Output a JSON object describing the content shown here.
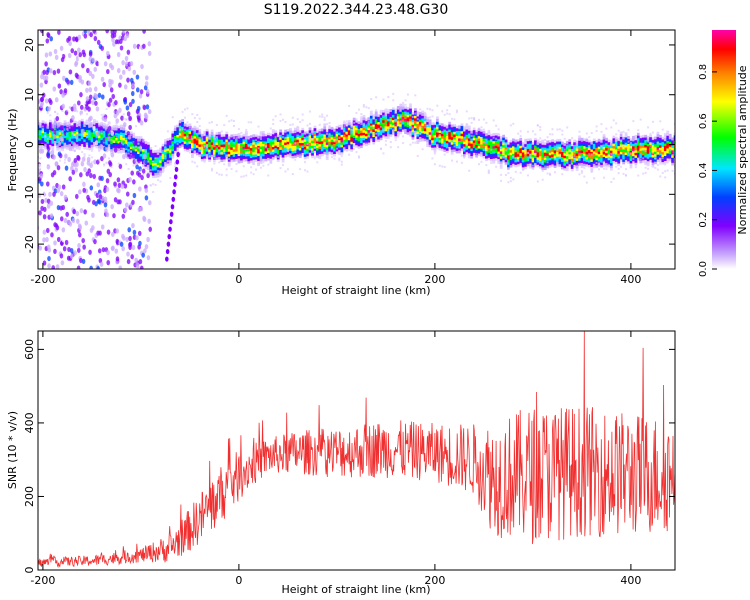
{
  "title": "S119.2022.344.23.48.G30",
  "chart_data": [
    {
      "type": "heatmap",
      "xlabel": "Height of straight line (km)",
      "ylabel": "Frequency (Hz)",
      "xlim": [
        -205,
        445
      ],
      "ylim": [
        -25,
        23
      ],
      "xticks": [
        -200,
        0,
        200,
        400
      ],
      "yticks": [
        -20,
        -10,
        0,
        10,
        20
      ],
      "grid": false,
      "colorbar": {
        "label": "Normalized spectral amplitude",
        "range": [
          0,
          0.97
        ],
        "ticks": [
          "0.0",
          "0.2",
          "0.4",
          "0.6",
          "0.8"
        ],
        "colors": [
          "#ffffff",
          "#c9a8ff",
          "#8000ff",
          "#0040ff",
          "#00e5ff",
          "#00ff00",
          "#ffff00",
          "#ff8000",
          "#ff0000",
          "#ff00aa"
        ]
      },
      "ridge": {
        "x": [
          -205,
          -180,
          -150,
          -120,
          -100,
          -85,
          -70,
          -60,
          -40,
          0,
          50,
          100,
          150,
          170,
          200,
          250,
          280,
          300,
          350,
          400,
          445
        ],
        "y": [
          2,
          2,
          2,
          1,
          -1,
          -4,
          -1,
          2,
          0,
          -1,
          0,
          1,
          4,
          5,
          2,
          0,
          -2,
          -2,
          -2,
          -1,
          -1
        ]
      }
    },
    {
      "type": "line",
      "xlabel": "Height of straight line (km)",
      "ylabel": "SNR (10 * v/v)",
      "xlim": [
        -205,
        445
      ],
      "ylim": [
        0,
        650
      ],
      "xticks": [
        -200,
        0,
        200,
        400
      ],
      "yticks": [
        0,
        200,
        400,
        600
      ],
      "grid": false,
      "color": "#f03030",
      "envelope": {
        "x": [
          -205,
          -150,
          -100,
          -70,
          -50,
          -30,
          -10,
          10,
          30,
          60,
          100,
          150,
          200,
          240,
          260,
          300,
          350,
          400,
          445
        ],
        "mean": [
          20,
          25,
          40,
          60,
          110,
          170,
          230,
          280,
          310,
          320,
          320,
          330,
          320,
          300,
          250,
          260,
          270,
          260,
          260
        ],
        "spread": [
          12,
          15,
          20,
          40,
          60,
          80,
          80,
          60,
          50,
          60,
          70,
          80,
          80,
          100,
          160,
          190,
          180,
          170,
          160
        ]
      }
    }
  ]
}
